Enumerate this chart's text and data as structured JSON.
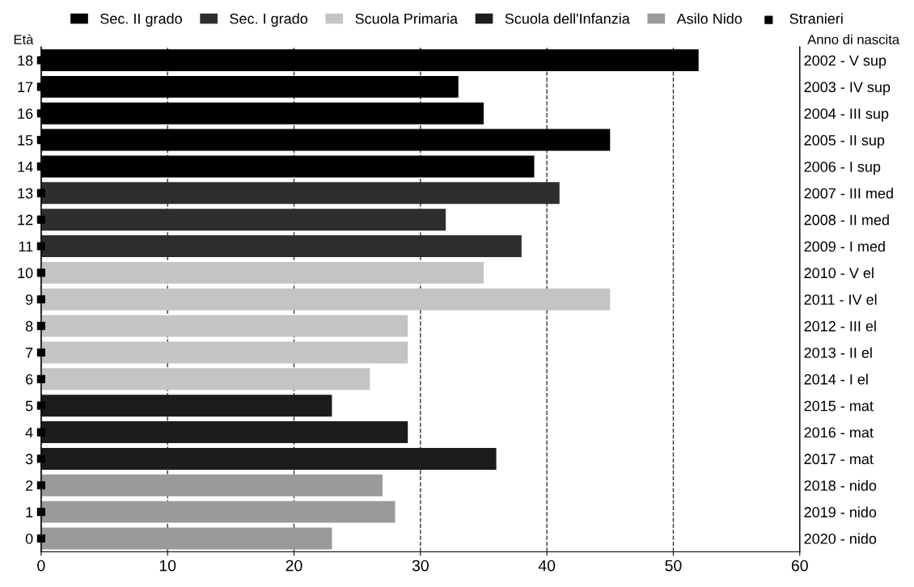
{
  "chart_data": {
    "type": "bar",
    "orientation": "horizontal",
    "ylabel": "Età",
    "y2label": "Anno di nascita",
    "categories": [
      "18",
      "17",
      "16",
      "15",
      "14",
      "13",
      "12",
      "11",
      "10",
      "9",
      "8",
      "7",
      "6",
      "5",
      "4",
      "3",
      "2",
      "1",
      "0"
    ],
    "y2_categories": [
      "2002 - V sup",
      "2003 - IV sup",
      "2004 - III sup",
      "2005 - II sup",
      "2006 - I sup",
      "2007 - III med",
      "2008 - II med",
      "2009 - I med",
      "2010 - V el",
      "2011 - IV el",
      "2012 - III el",
      "2013 - II el",
      "2014 - I el",
      "2015 - mat",
      "2016 - mat",
      "2017 - mat",
      "2018 - nido",
      "2019 - nido",
      "2020 - nido"
    ],
    "series": [
      {
        "name": "Sec. II grado",
        "color": "#000000",
        "values": [
          52,
          33,
          35,
          45,
          39,
          null,
          null,
          null,
          null,
          null,
          null,
          null,
          null,
          null,
          null,
          null,
          null,
          null,
          null
        ]
      },
      {
        "name": "Sec. I grado",
        "color": "#2e2e2e",
        "values": [
          null,
          null,
          null,
          null,
          null,
          41,
          32,
          38,
          null,
          null,
          null,
          null,
          null,
          null,
          null,
          null,
          null,
          null,
          null
        ]
      },
      {
        "name": "Scuola Primaria",
        "color": "#c4c4c4",
        "values": [
          null,
          null,
          null,
          null,
          null,
          null,
          null,
          null,
          35,
          45,
          29,
          29,
          26,
          null,
          null,
          null,
          null,
          null,
          null
        ]
      },
      {
        "name": "Scuola dell'Infanzia",
        "color": "#1c1c1c",
        "values": [
          null,
          null,
          null,
          null,
          null,
          null,
          null,
          null,
          null,
          null,
          null,
          null,
          null,
          23,
          29,
          36,
          null,
          null,
          null
        ]
      },
      {
        "name": "Asilo Nido",
        "color": "#9a9a9a",
        "values": [
          null,
          null,
          null,
          null,
          null,
          null,
          null,
          null,
          null,
          null,
          null,
          null,
          null,
          null,
          null,
          null,
          27,
          28,
          23
        ]
      },
      {
        "name": "Stranieri",
        "color": "#000000",
        "type": "scatter",
        "marker": "square",
        "values": [
          0,
          0,
          0,
          0,
          0,
          0,
          0,
          0,
          0,
          0,
          0,
          0,
          0,
          0,
          0,
          0,
          0,
          0,
          0
        ]
      }
    ],
    "xlim": [
      0,
      60
    ],
    "xticks": [
      0,
      10,
      20,
      30,
      40,
      50,
      60
    ],
    "grid": "x",
    "line_style": "dashed",
    "legend": "top"
  }
}
